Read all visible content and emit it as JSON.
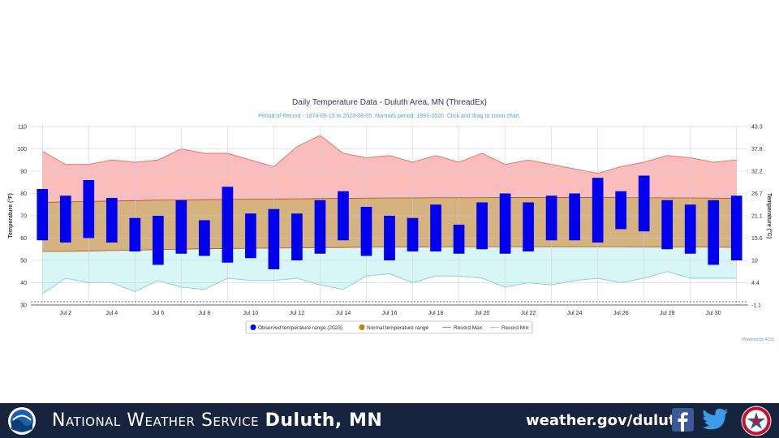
{
  "chart_data": {
    "type": "bar",
    "title": "Daily Temperature Data - Duluth Area, MN (ThreadEx)",
    "subtitle": "Period of Record - 1874-05-13 to 2023-08-05. Normals period: 1991-2020. Click and drag to zoom chart.",
    "ylabel": "Temperature (°F)",
    "y2label": "Temperature (°C)",
    "ylim": [
      30,
      110
    ],
    "y_ticks": [
      "30",
      "40",
      "50",
      "60",
      "70",
      "80",
      "90",
      "100",
      "110"
    ],
    "y2_ticks": [
      "-1.1",
      "4.4",
      "10",
      "15.6",
      "21.1",
      "26.7",
      "32.2",
      "37.8",
      "43.3"
    ],
    "x_tick_labels": [
      "Jul 2",
      "Jul 4",
      "Jul 6",
      "Jul 8",
      "Jul 10",
      "Jul 12",
      "Jul 14",
      "Jul 16",
      "Jul 18",
      "Jul 20",
      "Jul 22",
      "Jul 24",
      "Jul 26",
      "Jul 28",
      "Jul 30"
    ],
    "days": [
      1,
      2,
      3,
      4,
      5,
      6,
      7,
      8,
      9,
      10,
      11,
      12,
      13,
      14,
      15,
      16,
      17,
      18,
      19,
      20,
      21,
      22,
      23,
      24,
      25,
      26,
      27,
      28,
      29,
      30,
      31
    ],
    "observed_low": [
      59,
      58,
      60,
      58,
      54,
      48,
      53,
      52,
      49,
      51,
      46,
      50,
      53,
      59,
      52,
      50,
      54,
      54,
      53,
      55,
      53,
      54,
      59,
      59,
      58,
      64,
      63,
      55,
      53,
      48,
      50
    ],
    "observed_high": [
      82,
      79,
      86,
      78,
      69,
      70,
      77,
      68,
      83,
      71,
      73,
      71,
      77,
      81,
      74,
      70,
      69,
      75,
      66,
      76,
      80,
      76,
      79,
      80,
      87,
      81,
      88,
      77,
      75,
      77,
      79
    ],
    "normal_low": [
      54,
      54,
      54.2,
      54.4,
      54.6,
      54.8,
      55,
      55.2,
      55.3,
      55.4,
      55.5,
      55.6,
      55.7,
      55.8,
      55.9,
      56,
      56,
      56,
      56.1,
      56.1,
      56.1,
      56.1,
      56.1,
      56.1,
      56.1,
      56.1,
      56,
      56,
      56,
      55.9,
      55.8
    ],
    "normal_high": [
      76,
      76.2,
      76.4,
      76.6,
      76.8,
      77,
      77.1,
      77.2,
      77.3,
      77.4,
      77.5,
      77.6,
      77.7,
      77.8,
      77.9,
      78,
      78,
      78.1,
      78.1,
      78.1,
      78.2,
      78.2,
      78.2,
      78.2,
      78.2,
      78.1,
      78.1,
      78,
      78,
      77.9,
      77.8
    ],
    "record_max": [
      99,
      93,
      93,
      95,
      94,
      95,
      100,
      98,
      98,
      95,
      92,
      101,
      106,
      98,
      96,
      97,
      94,
      97,
      94,
      98,
      93,
      95,
      93,
      91,
      89,
      92,
      94,
      97,
      96,
      94,
      95
    ],
    "record_min": [
      35,
      42,
      40,
      40,
      36,
      41,
      38,
      37,
      42,
      41,
      41,
      42,
      39,
      37,
      43,
      44,
      40,
      43,
      43,
      42,
      38,
      40,
      39,
      41,
      42,
      40,
      42,
      45,
      42,
      42,
      42
    ],
    "legend": [
      "Observed temperature range (2023)",
      "Normal temperature range",
      "Record Max",
      "Record Min"
    ],
    "legend_placement": "bottom-center",
    "credit": "Powered by ACIS",
    "grid": true,
    "colors": {
      "observed": "#0000ee",
      "normal_fill": "#d6b27e",
      "normal_line": "#a0522d",
      "record_max_fill": "#fbbcbc",
      "record_max_line": "#e07a6e",
      "record_min_fill": "#d9f6f6",
      "record_min_line": "#8fd0d8",
      "legend_normal": "#b8860b"
    }
  },
  "footer": {
    "agency_name_small": "National Weather Service",
    "agency_location": "Duluth, MN",
    "website": "weather.gov/duluth",
    "icons": [
      "noaa-logo",
      "facebook-icon",
      "twitter-icon",
      "nws-logo"
    ],
    "background": "#16243e"
  }
}
